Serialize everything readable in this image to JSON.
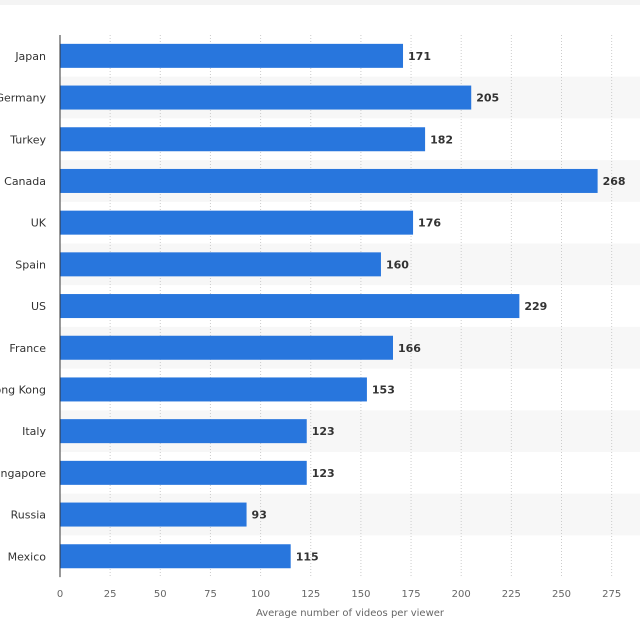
{
  "chart_data": {
    "type": "bar",
    "orientation": "horizontal",
    "categories": [
      "Japan",
      "Germany",
      "Turkey",
      "Canada",
      "UK",
      "Spain",
      "US",
      "France",
      "Hong Kong",
      "Italy",
      "Singapore",
      "Russia",
      "Mexico"
    ],
    "values": [
      171,
      205,
      182,
      268,
      176,
      160,
      229,
      166,
      153,
      123,
      123,
      93,
      115
    ],
    "xlabel": "Average number of videos per viewer",
    "ylabel": "",
    "xlim": [
      0,
      290
    ],
    "xticks": [
      0,
      25,
      50,
      75,
      100,
      125,
      150,
      175,
      200,
      225,
      250,
      275
    ],
    "grid": true,
    "legend": "none",
    "bar_color": "#2876dd",
    "alt_row_color": "#f7f7f7"
  }
}
